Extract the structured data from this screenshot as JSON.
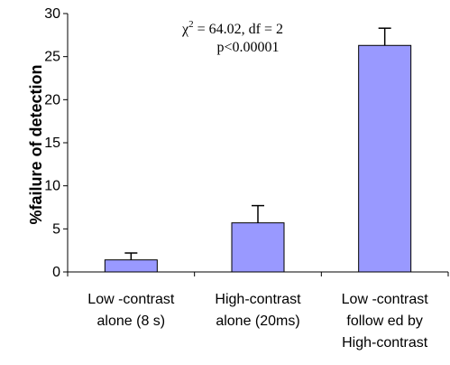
{
  "chart_data": {
    "type": "bar",
    "categories": [
      [
        "Low -contrast",
        "alone (8 s)"
      ],
      [
        "High-contrast",
        "alone (20ms)"
      ],
      [
        "Low -contrast",
        "follow ed by",
        "High-contrast"
      ]
    ],
    "values": [
      1.4,
      5.7,
      26.3
    ],
    "error_plus": [
      0.8,
      2.0,
      2.0
    ],
    "ylabel": "%failure of detection",
    "ylim": [
      0,
      30
    ],
    "yticks": [
      0,
      5,
      10,
      15,
      20,
      25,
      30
    ],
    "bar_color": "#9999ff",
    "annotation": {
      "chi": "χ",
      "sup": "2",
      "line1_rest": " = 64.02, df = 2",
      "line2": "p<0.00001"
    }
  }
}
